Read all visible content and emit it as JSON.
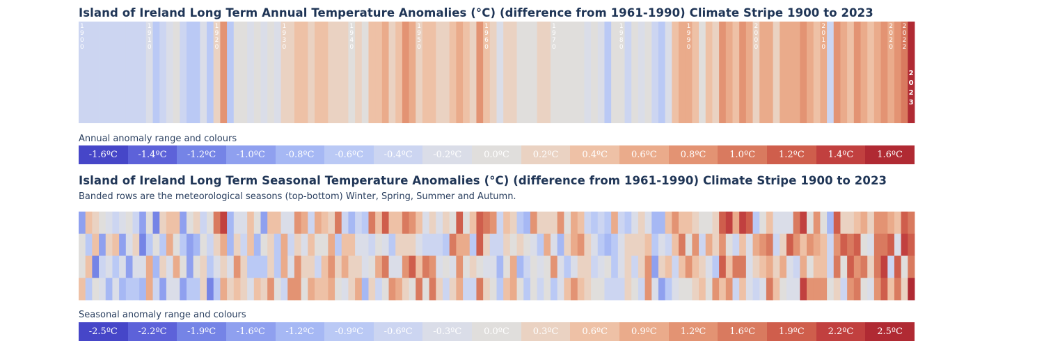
{
  "chart_data": [
    {
      "type": "heatmap",
      "title": "Island of Ireland Long Term Annual Temperature Anomalies (°C) (difference from 1961-1990) Climate Stripe 1900 to 2023",
      "years": [
        1900,
        2023
      ],
      "unit": "°C",
      "baseline": "1961-1990",
      "values": [
        -0.4,
        -0.4,
        -0.4,
        -0.4,
        -0.4,
        -0.4,
        -0.4,
        -0.4,
        -0.4,
        -0.4,
        -0.2,
        -0.6,
        -0.4,
        -0.2,
        0.0,
        -0.4,
        -0.6,
        -0.6,
        -0.2,
        -0.6,
        0.2,
        0.8,
        -0.6,
        0.0,
        0.0,
        -0.2,
        0.0,
        -0.2,
        0.0,
        -0.2,
        0.2,
        0.2,
        0.4,
        0.4,
        0.2,
        0.4,
        0.4,
        0.2,
        0.2,
        0.2,
        0.0,
        0.2,
        0.0,
        0.4,
        0.4,
        0.6,
        0.2,
        0.4,
        0.8,
        0.6,
        0.2,
        0.4,
        0.4,
        0.2,
        0.2,
        0.4,
        0.6,
        0.4,
        0.2,
        0.8,
        0.4,
        0.2,
        -0.2,
        0.2,
        0.2,
        0.0,
        0.0,
        0.0,
        0.2,
        0.2,
        0.0,
        0.0,
        0.0,
        0.0,
        0.0,
        -0.2,
        0.0,
        -0.2,
        -0.6,
        0.0,
        0.0,
        -0.4,
        0.0,
        -0.2,
        0.0,
        -0.4,
        -0.6,
        -0.2,
        0.4,
        0.6,
        0.6,
        0.4,
        0.0,
        0.4,
        0.2,
        0.8,
        0.6,
        0.4,
        0.8,
        0.6,
        0.2,
        0.6,
        0.6,
        0.2,
        0.6,
        0.6,
        0.6,
        0.8,
        0.6,
        0.4,
        0.6,
        -0.4,
        0.8,
        0.6,
        0.4,
        0.8,
        0.6,
        0.4,
        0.6,
        0.8,
        0.6,
        0.8,
        1.0,
        1.6
      ],
      "decade_labels": [
        "1900",
        "1910",
        "1920",
        "1930",
        "1940",
        "1950",
        "1960",
        "1970",
        "1980",
        "1990",
        "2000",
        "2010",
        "2020",
        "2022"
      ],
      "highlight_label": "2023"
    },
    {
      "type": "heatmap",
      "title": "Island of Ireland Long Term Seasonal Temperature Anomalies (°C) (difference from 1961-1990) Climate Stripe 1900 to 2023",
      "subtitle": "Banded rows are the meteorological seasons (top-bottom) Winter, Spring, Summer and Autumn.",
      "rows": [
        "Winter",
        "Spring",
        "Summer",
        "Autumn"
      ],
      "years": [
        1900,
        2023
      ],
      "unit": "°C"
    }
  ],
  "annual_legend": {
    "label": "Annual anomaly range and colours",
    "items": [
      "-1.6ºC",
      "-1.4ºC",
      "-1.2ºC",
      "-1.0ºC",
      "-0.8ºC",
      "-0.6ºC",
      "-0.4ºC",
      "-0.2ºC",
      "0.0ºC",
      "0.2ºC",
      "0.4ºC",
      "0.6ºC",
      "0.8ºC",
      "1.0ºC",
      "1.2ºC",
      "1.4ºC",
      "1.6ºC"
    ]
  },
  "seasonal_legend": {
    "label": "Seasonal anomaly range and colours",
    "items": [
      "-2.5ºC",
      "-2.2ºC",
      "-1.9ºC",
      "-1.6ºC",
      "-1.2ºC",
      "-0.9ºC",
      "-0.6ºC",
      "-0.3ºC",
      "0.0ºC",
      "0.3ºC",
      "0.6ºC",
      "0.9ºC",
      "1.2ºC",
      "1.6ºC",
      "1.9ºC",
      "2.2ºC",
      "2.5ºC"
    ]
  },
  "colors": {
    "scale": [
      "#4646c8",
      "#5d62d9",
      "#7584e6",
      "#8fa0ef",
      "#a6b8f4",
      "#bac9f5",
      "#ccd5f1",
      "#dadde8",
      "#e0dedc",
      "#ead2c2",
      "#eec1a6",
      "#eaab8b",
      "#e39373",
      "#d97a5f",
      "#cf5e4c",
      "#c1403f",
      "#b02a33"
    ]
  }
}
